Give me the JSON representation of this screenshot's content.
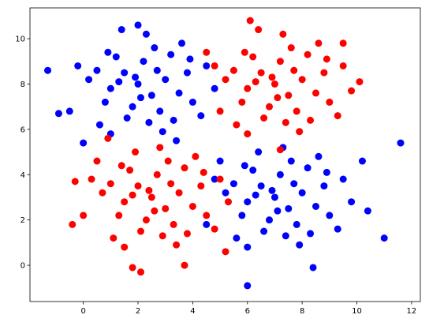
{
  "chart_data": {
    "type": "scatter",
    "xlim": [
      -1.95,
      12.32
    ],
    "ylim": [
      -1.6,
      11.36
    ],
    "xticks": [
      0,
      2,
      4,
      6,
      8,
      10,
      12
    ],
    "yticks": [
      0,
      2,
      4,
      6,
      8,
      10
    ],
    "series": [
      {
        "color": "blue",
        "x": [
          2,
          1.5,
          2.5,
          1,
          3,
          2.2,
          1.8,
          2.8,
          0.5,
          3.5,
          1.2,
          2.6,
          3.2,
          0.8,
          1.6,
          2.4,
          3.8,
          0.2,
          4,
          1.4,
          2.3,
          3.6,
          -0.2,
          0.6,
          1,
          2.9,
          4.3,
          4.5,
          3.3,
          1.9,
          2.1,
          1.3,
          2.7,
          0.9,
          3.9,
          -0.5,
          0,
          4.8,
          -1.3,
          -0.9,
          2,
          3.4,
          7,
          6.5,
          7.5,
          6,
          8,
          7.2,
          6.8,
          7.8,
          5.5,
          8.5,
          6.2,
          7.6,
          8.2,
          5.8,
          6.6,
          7.4,
          8.8,
          5.2,
          9,
          6.4,
          7.3,
          8.6,
          4.8,
          5.6,
          6,
          7.9,
          9.3,
          9.5,
          8.3,
          6.9,
          7.1,
          6.3,
          7.7,
          5.9,
          8.9,
          4.5,
          5,
          9.8,
          11.6,
          11,
          6,
          10.4,
          8.4,
          10.2
        ],
        "values": [
          8,
          8.5,
          7.5,
          7.8,
          8.2,
          9,
          7,
          6.8,
          8.6,
          7.6,
          9.2,
          9.6,
          9.3,
          7.2,
          6.5,
          6.3,
          8.5,
          8.2,
          7.2,
          10.4,
          10.2,
          9.8,
          8.8,
          6.2,
          5.8,
          5.9,
          6.6,
          8.8,
          6.4,
          8.3,
          7.4,
          8.1,
          8.6,
          9.4,
          9.1,
          6.8,
          5.4,
          7.8,
          8.6,
          6.7,
          10.6,
          5.5,
          3,
          3.5,
          2.5,
          2.8,
          3.2,
          4,
          2,
          1.8,
          3.6,
          2.6,
          4.2,
          4.6,
          4.3,
          2.2,
          1.5,
          1.3,
          3.5,
          3.2,
          2.2,
          5,
          5.2,
          4.8,
          3.8,
          1.2,
          0.8,
          0.9,
          1.6,
          3.8,
          1.4,
          3.3,
          2.4,
          3.1,
          3.6,
          4.4,
          4.1,
          1.8,
          4.6,
          2.8,
          5.4,
          1.2,
          -0.9,
          2.4,
          -0.1,
          4.6
        ]
      },
      {
        "color": "red",
        "x": [
          7,
          6.5,
          7.5,
          6,
          8,
          7.2,
          6.8,
          7.8,
          5.5,
          8.5,
          6.2,
          7.6,
          8.2,
          5.8,
          6.6,
          7.4,
          8.8,
          5.2,
          9,
          6.4,
          7.3,
          8.6,
          4.8,
          5.6,
          6,
          7.9,
          9.3,
          9.5,
          8.3,
          6.9,
          7.1,
          6.3,
          7.7,
          5.9,
          8.9,
          4.5,
          5,
          9.8,
          10.1,
          9.5,
          6.1,
          7.2,
          2.5,
          2,
          3,
          1.5,
          3.5,
          2.7,
          2.3,
          3.3,
          1,
          4,
          1.7,
          3.1,
          3.7,
          1.3,
          2.1,
          2.9,
          4.3,
          0.7,
          4.5,
          1.9,
          2.8,
          4.1,
          0.3,
          1.1,
          1.5,
          3.4,
          4.8,
          5,
          3.8,
          2.4,
          2.6,
          1.8,
          3.2,
          1.4,
          4.4,
          0,
          0.5,
          5.3,
          -0.4,
          2.1,
          5.2,
          1.8,
          3.7,
          -0.3,
          0.9
        ],
        "values": [
          8,
          8.5,
          7.5,
          7.8,
          8.2,
          9,
          7,
          6.8,
          8.6,
          7.6,
          9.2,
          9.6,
          9.3,
          7.2,
          6.5,
          6.3,
          8.5,
          8.2,
          7.2,
          10.4,
          10.2,
          9.8,
          8.8,
          6.2,
          5.8,
          5.9,
          6.6,
          8.8,
          6.4,
          8.3,
          7.4,
          8.1,
          8.6,
          9.4,
          9.1,
          9.4,
          6.8,
          7.7,
          8.1,
          9.8,
          10.8,
          5.1,
          3,
          3.5,
          2.5,
          2.8,
          3.2,
          4,
          2,
          1.8,
          3.6,
          2.6,
          4.2,
          4.6,
          4.3,
          2.2,
          1.5,
          1.3,
          3.5,
          3.2,
          2.2,
          5,
          5.2,
          4.8,
          3.8,
          1.2,
          0.8,
          0.9,
          1.6,
          3.8,
          1.4,
          3.3,
          2.4,
          3.1,
          3.6,
          4.4,
          4.1,
          2.2,
          4.6,
          2.8,
          1.8,
          -0.3,
          0.6,
          -0.1,
          0,
          3.7,
          5.6
        ]
      }
    ]
  }
}
